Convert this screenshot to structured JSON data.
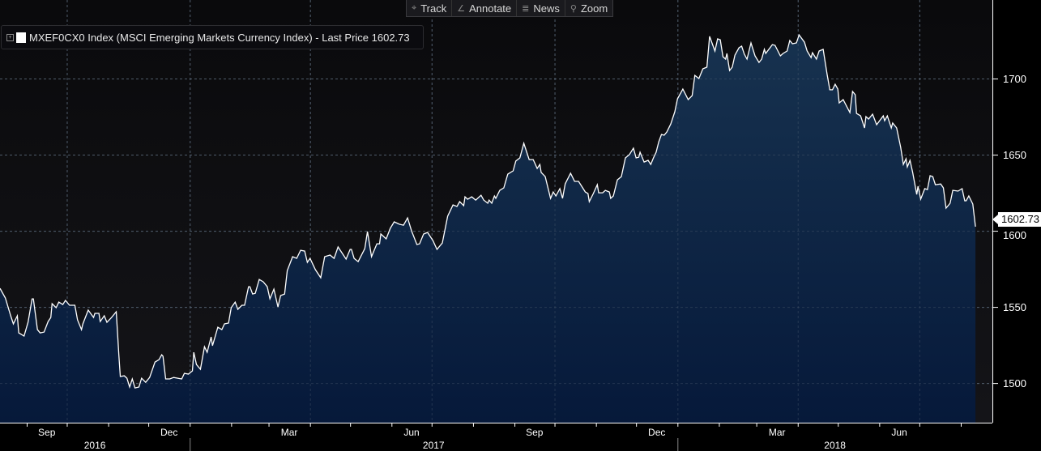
{
  "toolbar": {
    "items": [
      {
        "label": "Track",
        "icon": "crosshair-icon",
        "glyph": "⌖"
      },
      {
        "label": "Annotate",
        "icon": "pencil-icon",
        "glyph": "∠"
      },
      {
        "label": "News",
        "icon": "news-icon",
        "glyph": "≣"
      },
      {
        "label": "Zoom",
        "icon": "magnifier-icon",
        "glyph": "⚲"
      }
    ]
  },
  "legend": {
    "expand_glyph": "+",
    "text": "MXEF0CX0 Index (MSCI Emerging Markets Currency Index) - Last Price 1602.73",
    "color": "#ffffff"
  },
  "last_price_label": "1602.73",
  "colors": {
    "line": "#ffffff",
    "fill_top": "#17324f",
    "fill_bottom": "#06193a",
    "grid": "#5a6878",
    "bg_top": "#0a0a0c",
    "bg_bottom": "#141418"
  },
  "chart_data": {
    "type": "area",
    "title": "MXEF0CX0 Index (MSCI Emerging Markets Currency Index) - Last Price 1602.73",
    "x_unit": "days since 2016-08-12",
    "xlim": [
      0,
      743
    ],
    "ylim": [
      1474,
      1751.6
    ],
    "grid": true,
    "yticks": [
      1500,
      1550,
      1600,
      1650,
      1700
    ],
    "ytick_labels": [
      "1500",
      "1550",
      "1600",
      "1650",
      "1700"
    ],
    "month_ticks": [
      20,
      50,
      81,
      111,
      142,
      173,
      201,
      232,
      262,
      293,
      323,
      354,
      385,
      415,
      446,
      476,
      507,
      538,
      566,
      597,
      627,
      658,
      688,
      719
    ],
    "gridlines_x": [
      50,
      142,
      232,
      323,
      415,
      507,
      597,
      688
    ],
    "month_labels": [
      {
        "label": "Sep",
        "from": 20,
        "to": 50
      },
      {
        "label": "Dec",
        "from": 111,
        "to": 142
      },
      {
        "label": "Mar",
        "from": 201,
        "to": 232
      },
      {
        "label": "Jun",
        "from": 293,
        "to": 323
      },
      {
        "label": "Sep",
        "from": 385,
        "to": 415
      },
      {
        "label": "Dec",
        "from": 476,
        "to": 507
      },
      {
        "label": "Mar",
        "from": 566,
        "to": 597
      },
      {
        "label": "Jun",
        "from": 658,
        "to": 688
      }
    ],
    "year_labels": [
      {
        "label": "2016",
        "from": 0,
        "to": 142
      },
      {
        "label": "2017",
        "from": 142,
        "to": 507
      },
      {
        "label": "2018",
        "from": 507,
        "to": 743
      }
    ],
    "series": [
      {
        "name": "MXEF0CX0 Index - Last Price",
        "last": 1602.73,
        "x": [
          0,
          4,
          8,
          10,
          13,
          14,
          18,
          21,
          24,
          25,
          28,
          30,
          33,
          36,
          38,
          39,
          42,
          44,
          47,
          49,
          52,
          56,
          58,
          61,
          62,
          66,
          70,
          71,
          74,
          75,
          78,
          80,
          83,
          87,
          89,
          90,
          93,
          95,
          97,
          99,
          101,
          104,
          106,
          109,
          112,
          116,
          119,
          121,
          122,
          124,
          127,
          130,
          133,
          136,
          138,
          141,
          144,
          145,
          147,
          150,
          153,
          155,
          158,
          159,
          163,
          166,
          168,
          171,
          173,
          176,
          178,
          181,
          183,
          186,
          187,
          189,
          191,
          194,
          197,
          200,
          202,
          205,
          208,
          210,
          213,
          215,
          219,
          222,
          225,
          228,
          230,
          232,
          236,
          240,
          243,
          247,
          250,
          253,
          259,
          262,
          263,
          265,
          268,
          273,
          275,
          278,
          282,
          284,
          285,
          289,
          292,
          295,
          299,
          302,
          305,
          308,
          312,
          314,
          317,
          320,
          324,
          327,
          331,
          335,
          339,
          342,
          344,
          347,
          348,
          350,
          353,
          356,
          360,
          362,
          365,
          366,
          368,
          370,
          371,
          374,
          377,
          380,
          384,
          386,
          389,
          392,
          396,
          399,
          402,
          404,
          405,
          408,
          412,
          414,
          416,
          419,
          421,
          423,
          427,
          430,
          433,
          438,
          440,
          441,
          444,
          447,
          448,
          451,
          453,
          456,
          457,
          459,
          462,
          465,
          468,
          471,
          474,
          476,
          478,
          479,
          482,
          485,
          487,
          489,
          491,
          493,
          495,
          497,
          499,
          502,
          505,
          507,
          511,
          515,
          518,
          520,
          523,
          526,
          529,
          531,
          535,
          537,
          539,
          541,
          543,
          544,
          546,
          548,
          550,
          553,
          555,
          557,
          559,
          562,
          565,
          568,
          570,
          572,
          573,
          578,
          580,
          584,
          586,
          589,
          591,
          593,
          596,
          598,
          602,
          604,
          607,
          608,
          611,
          613,
          616,
          619,
          621,
          623,
          625,
          627,
          628,
          631,
          636,
          638,
          640,
          641,
          644,
          647,
          648,
          650,
          653,
          656,
          661,
          662,
          664,
          667,
          668,
          671,
          674,
          676,
          678,
          679,
          681,
          683,
          686,
          687,
          689,
          692,
          694,
          696,
          698,
          700,
          704,
          706,
          708,
          711,
          713,
          717,
          720,
          722,
          723,
          725,
          728,
          730
        ],
        "y": [
          1562.2,
          1555.9,
          1544.2,
          1538.9,
          1544.2,
          1533.0,
          1530.9,
          1539.9,
          1555.3,
          1555.3,
          1535.1,
          1533.0,
          1533.5,
          1540.4,
          1543.1,
          1552.1,
          1549.5,
          1553.2,
          1551.6,
          1554.3,
          1551.1,
          1551.1,
          1541.5,
          1535.1,
          1538.9,
          1547.9,
          1543.1,
          1545.8,
          1545.8,
          1540.4,
          1544.2,
          1539.9,
          1542.6,
          1546.8,
          1517.6,
          1504.3,
          1504.8,
          1503.2,
          1497.4,
          1502.7,
          1496.8,
          1497.4,
          1503.2,
          1500.5,
          1503.7,
          1513.8,
          1515.4,
          1518.6,
          1517.6,
          1502.7,
          1502.7,
          1503.7,
          1503.2,
          1502.7,
          1506.4,
          1505.9,
          1508.0,
          1520.2,
          1512.2,
          1509.1,
          1523.9,
          1520.2,
          1530.3,
          1524.5,
          1536.7,
          1535.1,
          1538.9,
          1539.4,
          1549.5,
          1553.2,
          1548.4,
          1551.1,
          1551.1,
          1563.3,
          1563.3,
          1558.5,
          1559.0,
          1568.1,
          1566.5,
          1563.3,
          1555.3,
          1561.7,
          1550.0,
          1557.5,
          1558.5,
          1573.9,
          1583.0,
          1581.9,
          1587.2,
          1586.7,
          1579.3,
          1581.9,
          1574.5,
          1569.2,
          1583.0,
          1584.1,
          1581.9,
          1589.4,
          1581.4,
          1587.8,
          1587.8,
          1581.9,
          1579.8,
          1588.3,
          1599.5,
          1583.0,
          1591.5,
          1591.5,
          1597.9,
          1594.7,
          1601.6,
          1605.9,
          1604.3,
          1603.7,
          1608.5,
          1600.0,
          1591.0,
          1591.5,
          1597.9,
          1598.9,
          1593.6,
          1587.8,
          1592.0,
          1609.6,
          1617.0,
          1616.0,
          1619.2,
          1616.5,
          1622.3,
          1620.7,
          1622.3,
          1620.2,
          1623.4,
          1620.2,
          1618.1,
          1620.2,
          1618.1,
          1622.9,
          1621.3,
          1626.6,
          1628.2,
          1637.2,
          1639.4,
          1645.8,
          1647.9,
          1657.5,
          1646.8,
          1646.8,
          1641.0,
          1643.6,
          1638.3,
          1635.6,
          1621.3,
          1625.5,
          1622.9,
          1627.7,
          1621.3,
          1630.9,
          1637.8,
          1632.5,
          1632.5,
          1625.5,
          1624.5,
          1619.2,
          1624.5,
          1630.3,
          1625.0,
          1625.0,
          1626.6,
          1625.5,
          1621.3,
          1622.9,
          1633.5,
          1635.6,
          1647.9,
          1650.0,
          1654.3,
          1647.9,
          1648.4,
          1651.6,
          1645.2,
          1646.3,
          1643.6,
          1647.9,
          1651.6,
          1658.5,
          1663.3,
          1662.8,
          1664.9,
          1670.2,
          1678.2,
          1686.7,
          1693.1,
          1686.2,
          1688.8,
          1702.1,
          1700.0,
          1706.4,
          1707.5,
          1727.7,
          1718.1,
          1726.1,
          1725.5,
          1714.4,
          1712.8,
          1716.5,
          1705.3,
          1707.5,
          1715.4,
          1720.2,
          1721.3,
          1716.0,
          1712.8,
          1723.4,
          1714.9,
          1710.6,
          1712.8,
          1719.2,
          1716.5,
          1722.3,
          1721.8,
          1714.9,
          1716.5,
          1718.1,
          1725.0,
          1722.9,
          1723.4,
          1728.7,
          1723.9,
          1718.1,
          1713.8,
          1717.0,
          1712.8,
          1718.1,
          1719.2,
          1702.7,
          1692.6,
          1692.6,
          1696.3,
          1693.1,
          1684.0,
          1686.2,
          1677.7,
          1691.5,
          1689.4,
          1677.1,
          1675.5,
          1667.6,
          1675.0,
          1673.4,
          1676.6,
          1669.7,
          1675.5,
          1672.3,
          1675.5,
          1667.6,
          1670.8,
          1667.6,
          1654.8,
          1643.6,
          1647.3,
          1642.0,
          1646.3,
          1638.3,
          1623.9,
          1629.3,
          1620.8,
          1627.7,
          1627.1,
          1636.2,
          1635.6,
          1630.3,
          1630.8,
          1628.2,
          1614.9,
          1618.1,
          1626.6,
          1626.1,
          1627.7,
          1619.7,
          1619.7,
          1622.9,
          1617.6,
          1602.73
        ]
      }
    ]
  }
}
